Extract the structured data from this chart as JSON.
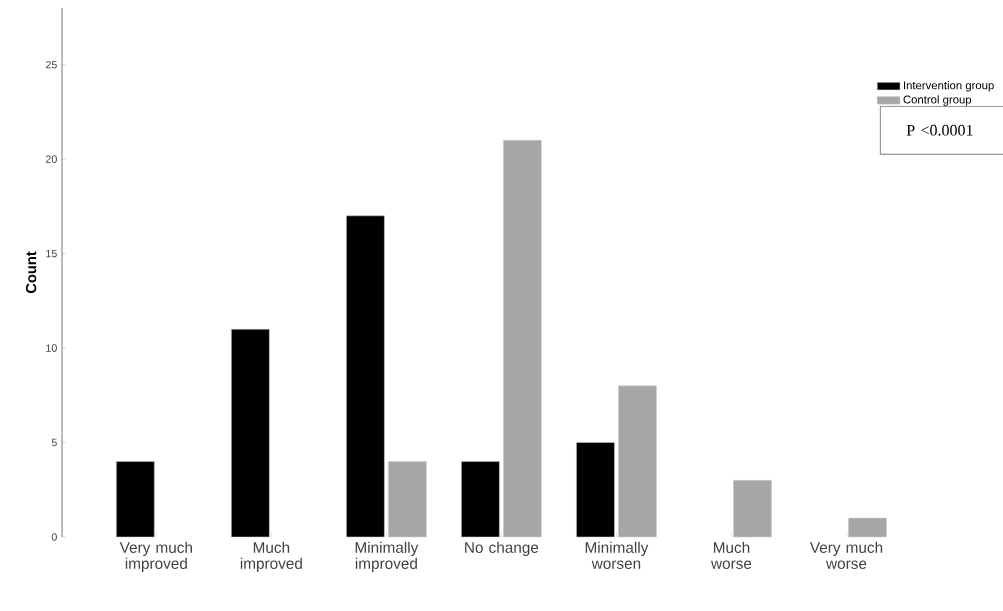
{
  "chart_data": {
    "type": "bar",
    "ylabel": "Count",
    "categories": [
      "Very much improved",
      "Much improved",
      "Minimally improved",
      "No change",
      "Minimally worsen",
      "Much worse",
      "Very much worse"
    ],
    "series": [
      {
        "name": "Intervention group",
        "color": "#000000",
        "values": [
          4,
          11,
          17,
          4,
          5,
          null,
          null
        ]
      },
      {
        "name": "Control group",
        "color": "#a6a6a6",
        "values": [
          null,
          null,
          4,
          21,
          8,
          3,
          1
        ]
      }
    ],
    "ylim": [
      0,
      28
    ],
    "yticks": [
      0,
      5,
      10,
      15,
      20,
      25
    ],
    "grid": false,
    "legend": "top right",
    "annotations": [
      "P <0.0001"
    ]
  }
}
